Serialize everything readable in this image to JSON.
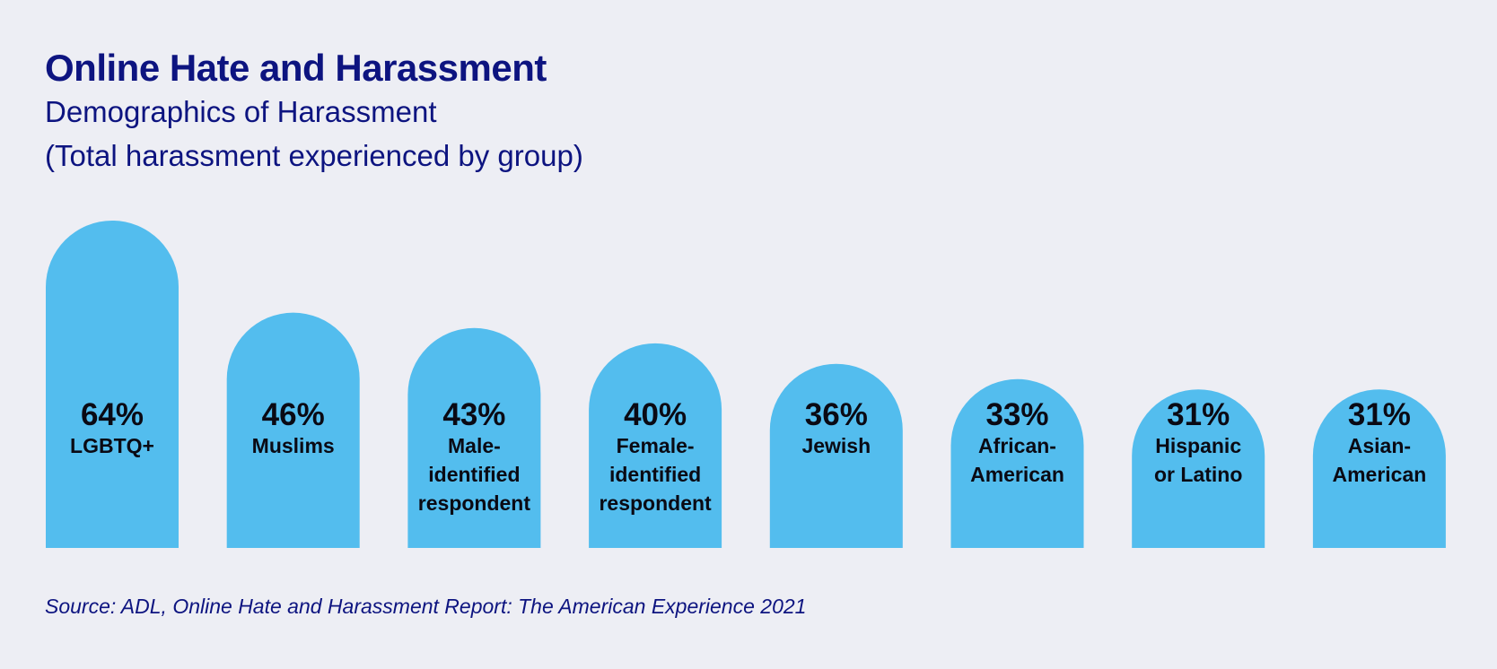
{
  "header": {
    "title": "Online Hate and Harassment",
    "subtitle": "Demographics of Harassment",
    "note": "(Total harassment experienced by group)"
  },
  "footer": {
    "source": "Source: ADL, Online Hate and Harassment Report: The American Experience 2021"
  },
  "colors": {
    "background": "#edeef4",
    "bar": "#53bdee",
    "heading_text": "#0d1480",
    "label_text": "#0a0a14"
  },
  "chart_data": {
    "type": "bar",
    "title": "Online Hate and Harassment",
    "subtitle": "Demographics of Harassment",
    "ylabel": "",
    "xlabel": "",
    "unit": "%",
    "categories": [
      "LGBTQ+",
      "Muslims",
      "Male-identified respondent",
      "Female-identified respondent",
      "Jewish",
      "African-American",
      "Hispanic or Latino",
      "Asian-American"
    ],
    "category_label_lines": [
      [
        "LGBTQ+"
      ],
      [
        "Muslims"
      ],
      [
        "Male-",
        "identified",
        "respondent"
      ],
      [
        "Female-",
        "identified",
        "respondent"
      ],
      [
        "Jewish"
      ],
      [
        "African-",
        "American"
      ],
      [
        "Hispanic",
        "or Latino"
      ],
      [
        "Asian-",
        "American"
      ]
    ],
    "values": [
      64,
      46,
      43,
      40,
      36,
      33,
      31,
      31
    ],
    "data_labels": [
      "64%",
      "46%",
      "43%",
      "40%",
      "36%",
      "33%",
      "31%",
      "31%"
    ],
    "grid": false,
    "legend": "none"
  }
}
